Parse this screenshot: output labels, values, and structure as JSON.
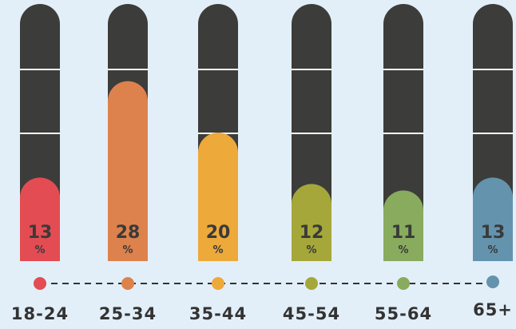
{
  "chart_data": {
    "type": "bar",
    "title": "",
    "xlabel": "",
    "ylabel": "",
    "ylim": [
      0,
      40
    ],
    "categories": [
      "18-24",
      "25-34",
      "35-44",
      "45-54",
      "55-64",
      "65+"
    ],
    "values": [
      13,
      28,
      20,
      12,
      11,
      13
    ],
    "value_suffix": "%",
    "grid": false,
    "legend": "none",
    "colors": [
      "#e34c53",
      "#dd824c",
      "#eda93a",
      "#a6a73a",
      "#88ab5e",
      "#6493ae"
    ],
    "track_color": "#3c3c3a",
    "timeline_dot_style": "dashed"
  }
}
